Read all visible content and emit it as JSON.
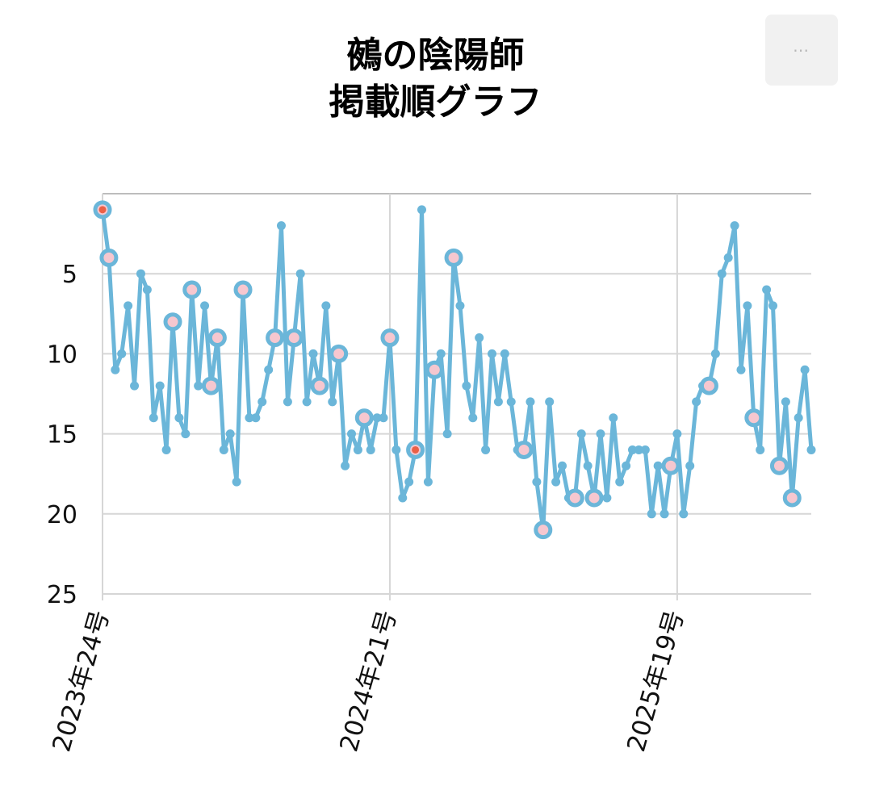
{
  "menu": {
    "icon": "more-horizontal-icon",
    "label": "⋯"
  },
  "chart_data": {
    "type": "line",
    "title_line1": "鵺の陰陽師",
    "title_line2": "掲載順グラフ",
    "xlabel": "",
    "ylabel": "",
    "y_reversed": true,
    "ylim": [
      0,
      25
    ],
    "yticks": [
      5,
      10,
      15,
      20,
      25
    ],
    "x_tick_labels": [
      {
        "label": "2023年24号",
        "index": 0
      },
      {
        "label": "2024年21号",
        "index": 45
      },
      {
        "label": "2025年19号",
        "index": 90
      }
    ],
    "grid": true,
    "colors": {
      "line": "#6bb6d9",
      "ring_fill": "#f6c7cf",
      "top_marker": "#ec6046",
      "grid": "#d6d6d6"
    },
    "series": [
      {
        "values": [
          1,
          4,
          11,
          10,
          7,
          12,
          5,
          6,
          14,
          12,
          16,
          8,
          14,
          15,
          6,
          12,
          7,
          12,
          9,
          16,
          15,
          18,
          6,
          14,
          14,
          13,
          11,
          9,
          2,
          13,
          9,
          5,
          13,
          10,
          12,
          7,
          13,
          10,
          17,
          15,
          16,
          14,
          16,
          14,
          14,
          9,
          16,
          19,
          18,
          16,
          1,
          18,
          11,
          10,
          15,
          4,
          7,
          12,
          14,
          9,
          16,
          10,
          13,
          10,
          13,
          16,
          16,
          13,
          18,
          21,
          13,
          18,
          17,
          19,
          19,
          15,
          17,
          19,
          15,
          19,
          14,
          18,
          17,
          16,
          16,
          16,
          20,
          17,
          20,
          17,
          15,
          20,
          17,
          13,
          12,
          12,
          10,
          5,
          4,
          2,
          11,
          7,
          14,
          16,
          6,
          7,
          17,
          13,
          19,
          14,
          11,
          16
        ],
        "highlight_ring": [
          1,
          11,
          14,
          17,
          18,
          22,
          27,
          30,
          34,
          37,
          41,
          45,
          52,
          55,
          66,
          69,
          74,
          77,
          89,
          95,
          102,
          106,
          108
        ],
        "highlight_top": [
          0,
          49
        ]
      }
    ]
  }
}
